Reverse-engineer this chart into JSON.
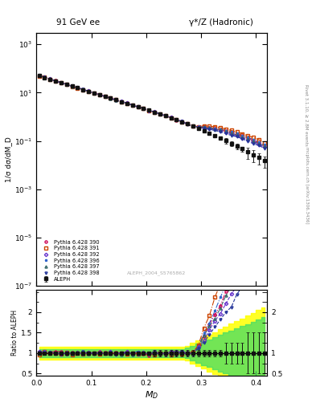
{
  "title_left": "91 GeV ee",
  "title_right": "γ*/Z (Hadronic)",
  "ylabel_main": "1/σ dσ/dM_D",
  "ylabel_ratio": "Ratio to ALEPH",
  "xlabel": "M_D",
  "right_label_top": "Rivet 3.1.10, ≥ 2.8M events",
  "right_label_bot": "mcplots.cern.ch [arXiv:1306.3436]",
  "watermark": "ALEPH_2004_S5765862",
  "xlim": [
    0.0,
    0.42
  ],
  "ylim_main": [
    1e-07,
    3000.0
  ],
  "ylim_ratio": [
    0.44,
    2.55
  ],
  "legend_entries": [
    "ALEPH",
    "Pythia 6.428 390",
    "Pythia 6.428 391",
    "Pythia 6.428 392",
    "Pythia 6.428 396",
    "Pythia 6.428 397",
    "Pythia 6.428 398"
  ],
  "line_colors": [
    "#cc0055",
    "#cc4400",
    "#6633cc",
    "#3366cc",
    "#336666",
    "#223399"
  ],
  "marker_styles": [
    "o",
    "s",
    "D",
    "*",
    "^",
    "v"
  ],
  "line_styles": [
    "-.",
    "-.",
    "--",
    "-.",
    "--",
    "--"
  ],
  "aleph_color": "#111111",
  "aleph_marker": "s"
}
